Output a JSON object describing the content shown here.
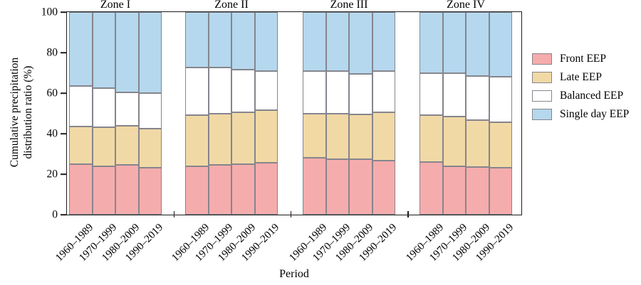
{
  "chart_data": {
    "type": "bar",
    "stacked": true,
    "xlabel": "Period",
    "ylabel_line1": "Cumulative precipitation",
    "ylabel_line2": "distribution ratio (%)",
    "ylim": [
      0,
      100
    ],
    "yticks": [
      "0",
      "20",
      "40",
      "60",
      "80",
      "100"
    ],
    "categories": [
      "1960–1989",
      "1970–1999",
      "1980–2009",
      "1990–2019"
    ],
    "series_order": [
      "front",
      "late",
      "balanced",
      "single"
    ],
    "legend": [
      {
        "key": "front",
        "label": "Front EEP",
        "color": "#F5ACAC"
      },
      {
        "key": "late",
        "label": "Late EEP",
        "color": "#F1D9A6"
      },
      {
        "key": "balanced",
        "label": "Balanced EEP",
        "color": "#FFFFFF"
      },
      {
        "key": "single",
        "label": "Single day EEP",
        "color": "#B5D8EE"
      }
    ],
    "groups": [
      {
        "label": "Zone I",
        "front": [
          25,
          24,
          24.5,
          23
        ],
        "late": [
          18.5,
          19,
          19.5,
          19.5
        ],
        "balanced": [
          20,
          19.5,
          16.5,
          17.5
        ],
        "single": [
          36.5,
          37.5,
          39.5,
          40
        ]
      },
      {
        "label": "Zone II",
        "front": [
          24,
          24.5,
          25,
          25.5
        ],
        "late": [
          25,
          25.5,
          25.5,
          26
        ],
        "balanced": [
          23.5,
          22.5,
          21,
          19.5
        ],
        "single": [
          27.5,
          27.5,
          28.5,
          29
        ]
      },
      {
        "label": "Zone III",
        "front": [
          28,
          27.5,
          27.5,
          26.5
        ],
        "late": [
          22,
          22.5,
          22,
          24
        ],
        "balanced": [
          21,
          21,
          20,
          20.5
        ],
        "single": [
          29,
          29,
          30.5,
          29
        ]
      },
      {
        "label": "Zone IV",
        "front": [
          26,
          24,
          23.5,
          23
        ],
        "late": [
          23,
          24.5,
          23,
          22.5
        ],
        "balanced": [
          21,
          21.5,
          22,
          22.5
        ],
        "single": [
          30,
          30,
          31.5,
          32
        ]
      }
    ],
    "axis_color": "#1c1c1c",
    "bar_border_color": "#85858D"
  }
}
